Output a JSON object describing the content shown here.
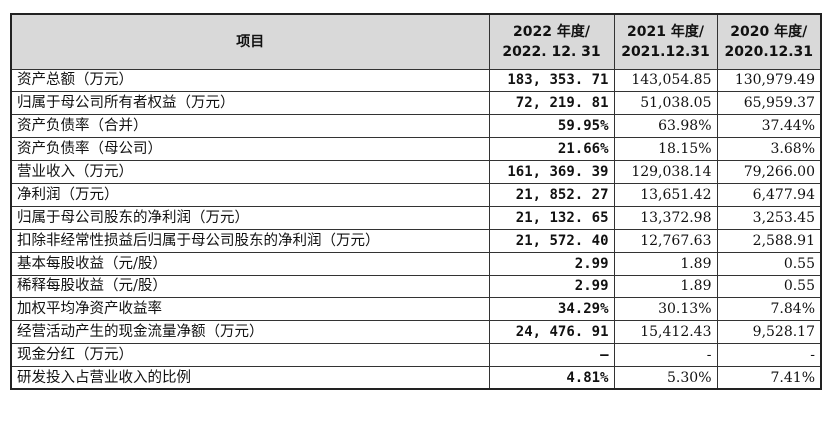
{
  "header": {
    "item": "项目",
    "col2022_line1": "2022 年度/",
    "col2022_line2": "2022. 12. 31",
    "col2021_line1": "2021 年度/",
    "col2021_line2": "2021.12.31",
    "col2020_line1": "2020 年度/",
    "col2020_line2": "2020.12.31"
  },
  "rows": [
    {
      "label": "资产总额（万元）",
      "y2022": "183, 353. 71",
      "y2021": "143,054.85",
      "y2020": "130,979.49"
    },
    {
      "label": "归属于母公司所有者权益（万元）",
      "y2022": "72, 219. 81",
      "y2021": "51,038.05",
      "y2020": "65,959.37"
    },
    {
      "label": "资产负债率（合并）",
      "y2022": "59.95%",
      "y2021": "63.98%",
      "y2020": "37.44%"
    },
    {
      "label": "资产负债率（母公司）",
      "y2022": "21.66%",
      "y2021": "18.15%",
      "y2020": "3.68%"
    },
    {
      "label": "营业收入（万元）",
      "y2022": "161, 369. 39",
      "y2021": "129,038.14",
      "y2020": "79,266.00"
    },
    {
      "label": "净利润（万元）",
      "y2022": "21, 852. 27",
      "y2021": "13,651.42",
      "y2020": "6,477.94"
    },
    {
      "label": "归属于母公司股东的净利润（万元）",
      "y2022": "21, 132. 65",
      "y2021": "13,372.98",
      "y2020": "3,253.45"
    },
    {
      "label": "扣除非经常性损益后归属于母公司股东的净利润（万元）",
      "y2022": "21, 572. 40",
      "y2021": "12,767.63",
      "y2020": "2,588.91"
    },
    {
      "label": "基本每股收益（元/股）",
      "y2022": "2.99",
      "y2021": "1.89",
      "y2020": "0.55"
    },
    {
      "label": "稀释每股收益（元/股）",
      "y2022": "2.99",
      "y2021": "1.89",
      "y2020": "0.55"
    },
    {
      "label": "加权平均净资产收益率",
      "y2022": "34.29%",
      "y2021": "30.13%",
      "y2020": "7.84%"
    },
    {
      "label": "经营活动产生的现金流量净额（万元）",
      "y2022": "24, 476. 91",
      "y2021": "15,412.43",
      "y2020": "9,528.17"
    },
    {
      "label": "现金分红（万元）",
      "y2022": "–",
      "y2021": "-",
      "y2020": "-"
    },
    {
      "label": "研发投入占营业收入的比例",
      "y2022": "4.81%",
      "y2021": "5.30%",
      "y2020": "7.41%"
    }
  ]
}
